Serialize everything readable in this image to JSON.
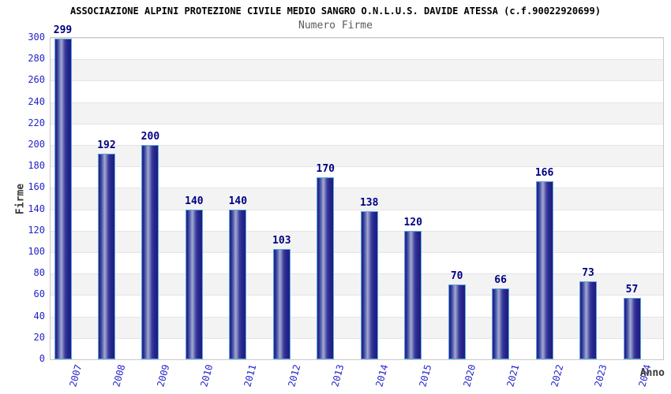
{
  "header": {
    "title": "ASSOCIAZIONE ALPINI PROTEZIONE CIVILE MEDIO SANGRO O.N.L.U.S. DAVIDE ATESSA (c.f.90022920699)",
    "subtitle": "Numero Firme"
  },
  "chart_data": {
    "type": "bar",
    "title": "ASSOCIAZIONE ALPINI PROTEZIONE CIVILE MEDIO SANGRO O.N.L.U.S. DAVIDE ATESSA (c.f.90022920699)",
    "subtitle": "Numero Firme",
    "categories": [
      "2007",
      "2008",
      "2009",
      "2010",
      "2011",
      "2012",
      "2013",
      "2014",
      "2015",
      "2020",
      "2021",
      "2022",
      "2023",
      "2024"
    ],
    "values": [
      299,
      192,
      200,
      140,
      140,
      103,
      170,
      138,
      120,
      70,
      66,
      166,
      73,
      57
    ],
    "xlabel": "Anno",
    "ylabel": "Firme",
    "ylim": [
      0,
      300
    ],
    "ytick_step": 20,
    "grid": true,
    "legend_position": "none",
    "bar_labels_visible": true,
    "colors": {
      "bar_edge": "#2c2c92",
      "bar_edge2": "#1d1d80",
      "bar_highlight": "#a2aad2",
      "bar_border": "#5aa7e0",
      "tick_label": "#2323c8",
      "value_label": "#000082",
      "band_gray": "#f3f3f3",
      "grid_line": "#e4e4e4",
      "plot_border": "#c9c9c9",
      "title": "#000000",
      "subtitle": "#5a5a5a",
      "axis_label": "#3a3a3a"
    }
  }
}
